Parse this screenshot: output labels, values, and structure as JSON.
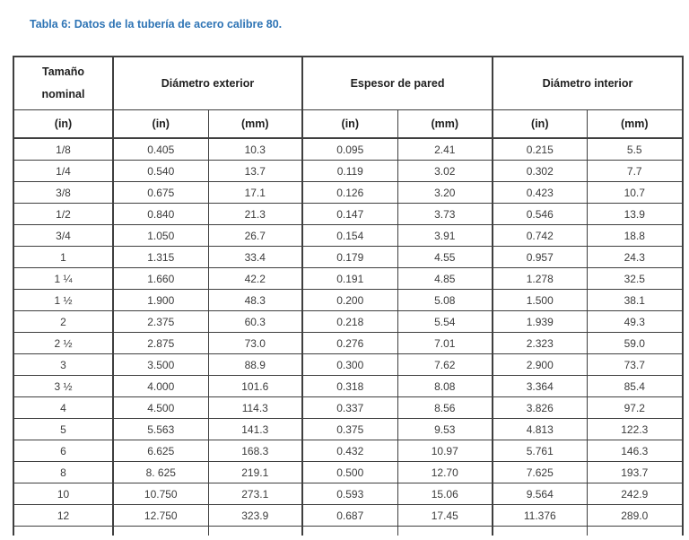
{
  "title": "Tabla 6: Datos de la tubería de acero calibre 80.",
  "table": {
    "nominal_header": "Tamaño\nnominal",
    "column_groups": [
      {
        "label": "Diámetro exterior",
        "span": 2
      },
      {
        "label": "Espesor de pared",
        "span": 2
      },
      {
        "label": "Diámetro interior",
        "span": 2
      }
    ],
    "unit_headers": [
      "(in)",
      "(in)",
      "(mm)",
      "(in)",
      "(mm)",
      "(in)",
      "(mm)"
    ],
    "rows": [
      [
        "1/8",
        "0.405",
        "10.3",
        "0.095",
        "2.41",
        "0.215",
        "5.5"
      ],
      [
        "1/4",
        "0.540",
        "13.7",
        "0.119",
        "3.02",
        "0.302",
        "7.7"
      ],
      [
        "3/8",
        "0.675",
        "17.1",
        "0.126",
        "3.20",
        "0.423",
        "10.7"
      ],
      [
        "1/2",
        "0.840",
        "21.3",
        "0.147",
        "3.73",
        "0.546",
        "13.9"
      ],
      [
        "3/4",
        "1.050",
        "26.7",
        "0.154",
        "3.91",
        "0.742",
        "18.8"
      ],
      [
        "1",
        "1.315",
        "33.4",
        "0.179",
        "4.55",
        "0.957",
        "24.3"
      ],
      [
        "1 ¼",
        "1.660",
        "42.2",
        "0.191",
        "4.85",
        "1.278",
        "32.5"
      ],
      [
        "1 ½",
        "1.900",
        "48.3",
        "0.200",
        "5.08",
        "1.500",
        "38.1"
      ],
      [
        "2",
        "2.375",
        "60.3",
        "0.218",
        "5.54",
        "1.939",
        "49.3"
      ],
      [
        "2 ½",
        "2.875",
        "73.0",
        "0.276",
        "7.01",
        "2.323",
        "59.0"
      ],
      [
        "3",
        "3.500",
        "88.9",
        "0.300",
        "7.62",
        "2.900",
        "73.7"
      ],
      [
        "3 ½",
        "4.000",
        "101.6",
        "0.318",
        "8.08",
        "3.364",
        "85.4"
      ],
      [
        "4",
        "4.500",
        "114.3",
        "0.337",
        "8.56",
        "3.826",
        "97.2"
      ],
      [
        "5",
        "5.563",
        "141.3",
        "0.375",
        "9.53",
        "4.813",
        "122.3"
      ],
      [
        "6",
        "6.625",
        "168.3",
        "0.432",
        "10.97",
        "5.761",
        "146.3"
      ],
      [
        "8",
        "8. 625",
        "219.1",
        "0.500",
        "12.70",
        "7.625",
        "193.7"
      ],
      [
        "10",
        "10.750",
        "273.1",
        "0.593",
        "15.06",
        "9.564",
        "242.9"
      ],
      [
        "12",
        "12.750",
        "323.9",
        "0.687",
        "17.45",
        "11.376",
        "289.0"
      ]
    ]
  },
  "colors": {
    "title": "#2E74B5",
    "border": "#3f3f3f",
    "header_text": "#1f1f1f",
    "body_text": "#3b3b3b"
  }
}
